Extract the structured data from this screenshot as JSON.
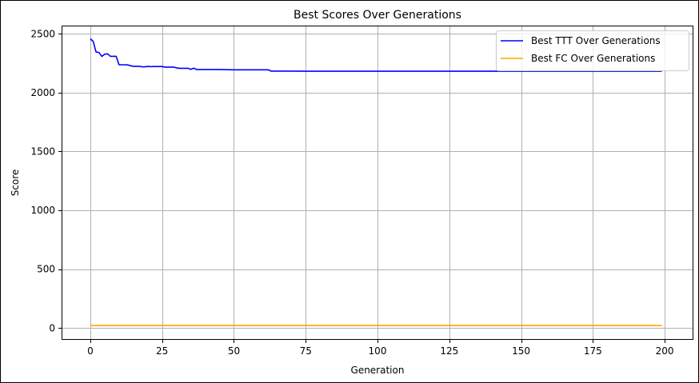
{
  "chart_data": {
    "type": "line",
    "title": "Best Scores Over Generations",
    "xlabel": "Generation",
    "ylabel": "Score",
    "xlim": [
      -10,
      210
    ],
    "ylim": [
      -100,
      2570
    ],
    "xticks": [
      0,
      25,
      50,
      75,
      100,
      125,
      150,
      175,
      200
    ],
    "yticks": [
      0,
      500,
      1000,
      1500,
      2000,
      2500
    ],
    "grid": true,
    "legend": {
      "position": "top-right",
      "entries": [
        "Best TTT Over Generations",
        "Best FC Over Generations"
      ]
    },
    "series": [
      {
        "name": "Best TTT Over Generations",
        "color": "#0000ff",
        "x": [
          0,
          1,
          2,
          3,
          4,
          5,
          6,
          7,
          8,
          9,
          10,
          11,
          12,
          13,
          14,
          15,
          16,
          17,
          18,
          19,
          20,
          21,
          22,
          23,
          24,
          25,
          26,
          27,
          28,
          29,
          30,
          31,
          32,
          33,
          34,
          35,
          36,
          37,
          38,
          40,
          45,
          50,
          55,
          60,
          62,
          63,
          70,
          80,
          90,
          100,
          120,
          140,
          160,
          180,
          199
        ],
        "y": [
          2458,
          2436,
          2345,
          2342,
          2308,
          2327,
          2330,
          2309,
          2309,
          2309,
          2237,
          2237,
          2237,
          2236,
          2229,
          2224,
          2224,
          2224,
          2220,
          2220,
          2223,
          2221,
          2222,
          2222,
          2222,
          2222,
          2217,
          2217,
          2217,
          2217,
          2211,
          2207,
          2207,
          2207,
          2207,
          2198,
          2208,
          2197,
          2197,
          2197,
          2197,
          2194,
          2194,
          2194,
          2194,
          2183,
          2183,
          2182,
          2182,
          2182,
          2182,
          2182,
          2182,
          2182,
          2182
        ]
      },
      {
        "name": "Best FC Over Generations",
        "color": "#ffa500",
        "x": [
          0,
          199
        ],
        "y": [
          22,
          22
        ]
      }
    ]
  }
}
